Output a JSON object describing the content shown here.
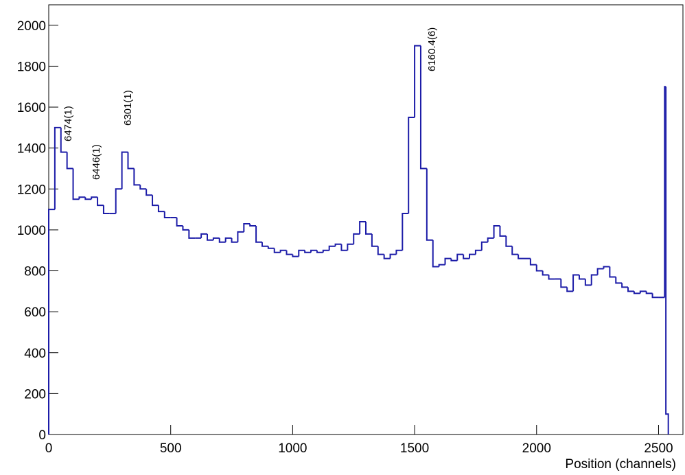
{
  "chart_data": {
    "type": "histogram",
    "x_label": "Position (channels)",
    "color": "#1c1ca8",
    "bins": [
      0,
      25,
      50,
      75,
      100,
      125,
      150,
      175,
      200,
      225,
      250,
      275,
      300,
      325,
      350,
      375,
      400,
      425,
      450,
      475,
      500,
      525,
      550,
      575,
      600,
      625,
      650,
      675,
      700,
      725,
      750,
      775,
      800,
      825,
      850,
      875,
      900,
      925,
      950,
      975,
      1000,
      1025,
      1050,
      1075,
      1100,
      1125,
      1150,
      1175,
      1200,
      1225,
      1250,
      1275,
      1300,
      1325,
      1350,
      1375,
      1400,
      1425,
      1450,
      1475,
      1500,
      1525,
      1550,
      1575,
      1600,
      1625,
      1650,
      1675,
      1700,
      1725,
      1750,
      1775,
      1800,
      1825,
      1850,
      1875,
      1900,
      1925,
      1950,
      1975,
      2000,
      2025,
      2050,
      2075,
      2100,
      2125,
      2150,
      2175,
      2200,
      2225,
      2250,
      2275,
      2300,
      2325,
      2350,
      2375,
      2400,
      2425,
      2450,
      2475,
      2500,
      2525,
      2530,
      2540
    ],
    "values": [
      1100,
      1500,
      1380,
      1300,
      1150,
      1160,
      1150,
      1160,
      1120,
      1080,
      1080,
      1200,
      1380,
      1300,
      1220,
      1200,
      1170,
      1120,
      1090,
      1060,
      1060,
      1020,
      1000,
      960,
      960,
      980,
      950,
      960,
      940,
      960,
      940,
      990,
      1030,
      1020,
      940,
      920,
      910,
      890,
      900,
      880,
      870,
      900,
      890,
      900,
      890,
      900,
      920,
      930,
      900,
      930,
      980,
      1040,
      980,
      920,
      880,
      860,
      880,
      900,
      1080,
      1550,
      1900,
      1300,
      950,
      820,
      830,
      860,
      850,
      880,
      860,
      880,
      900,
      940,
      960,
      1020,
      970,
      920,
      880,
      860,
      860,
      830,
      800,
      780,
      760,
      760,
      720,
      700,
      780,
      760,
      730,
      780,
      810,
      820,
      770,
      740,
      720,
      700,
      690,
      700,
      690,
      670,
      670,
      1700,
      100
    ],
    "xlim": [
      0,
      2600
    ],
    "ylim": [
      0,
      2100
    ],
    "xticks": [
      0,
      500,
      1000,
      1500,
      2000,
      2500
    ],
    "yticks": [
      0,
      200,
      400,
      600,
      800,
      1000,
      1200,
      1400,
      1600,
      1800,
      2000
    ],
    "annotations": [
      "6474(1)",
      "6446(1)",
      "6301(1)",
      "6160.4(6)"
    ]
  }
}
